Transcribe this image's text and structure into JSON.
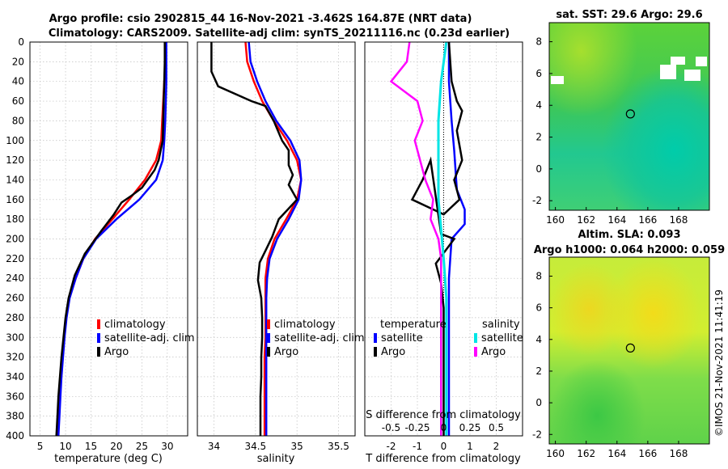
{
  "header": {
    "line1": "Argo profile: csio 2902815_44 16-Nov-2021 -3.462S 164.87E (NRT data)",
    "line2": "Climatology: CARS2009. Satellite-adj clim: synTS_20211116.nc (0.23d earlier)"
  },
  "credit": "©IMOS 21-Nov-2021 11:41:19",
  "colors": {
    "climatology": "#ff0000",
    "satellite": "#0000ff",
    "argo": "#000000",
    "sal_satellite": "#00e5e5",
    "sal_argo": "#ff00ff"
  },
  "chart_data": [
    {
      "type": "line",
      "id": "temperature",
      "xlabel": "temperature (deg C)",
      "ylabel": "",
      "xlim": [
        3,
        34
      ],
      "ylim": [
        400,
        0
      ],
      "xticks": [
        5,
        10,
        15,
        20,
        25,
        30
      ],
      "yticks": [
        0,
        20,
        40,
        60,
        80,
        100,
        120,
        140,
        160,
        180,
        200,
        220,
        240,
        260,
        280,
        300,
        320,
        340,
        360,
        380,
        400
      ],
      "legend": [
        "climatology",
        "satellite-adj. clim",
        "Argo"
      ],
      "series": [
        {
          "name": "climatology",
          "color": "red",
          "points": [
            [
              29.6,
              0
            ],
            [
              29.6,
              20
            ],
            [
              29.4,
              40
            ],
            [
              29.2,
              60
            ],
            [
              29,
              80
            ],
            [
              28.8,
              100
            ],
            [
              27.8,
              120
            ],
            [
              25.6,
              140
            ],
            [
              22.5,
              160
            ],
            [
              19.2,
              180
            ],
            [
              15.8,
              200
            ],
            [
              13.5,
              220
            ],
            [
              12,
              240
            ],
            [
              10.7,
              260
            ],
            [
              10.1,
              280
            ],
            [
              9.7,
              300
            ],
            [
              9.4,
              320
            ],
            [
              9.1,
              340
            ],
            [
              8.9,
              360
            ],
            [
              8.7,
              380
            ],
            [
              8.5,
              400
            ]
          ]
        },
        {
          "name": "satellite-adj. clim",
          "color": "blue",
          "points": [
            [
              29.8,
              0
            ],
            [
              29.8,
              20
            ],
            [
              29.8,
              40
            ],
            [
              29.7,
              60
            ],
            [
              29.6,
              80
            ],
            [
              29.4,
              100
            ],
            [
              29.1,
              120
            ],
            [
              27.8,
              140
            ],
            [
              24.5,
              160
            ],
            [
              20,
              180
            ],
            [
              16,
              200
            ],
            [
              13.5,
              220
            ],
            [
              12,
              240
            ],
            [
              10.8,
              260
            ],
            [
              10.2,
              280
            ],
            [
              9.8,
              300
            ],
            [
              9.5,
              320
            ],
            [
              9.2,
              340
            ],
            [
              9,
              360
            ],
            [
              8.8,
              380
            ],
            [
              8.6,
              400
            ]
          ]
        },
        {
          "name": "Argo",
          "color": "black",
          "points": [
            [
              29.5,
              0
            ],
            [
              29.5,
              20
            ],
            [
              29.4,
              40
            ],
            [
              29.3,
              60
            ],
            [
              29.2,
              80
            ],
            [
              29.1,
              100
            ],
            [
              28.3,
              120
            ],
            [
              27.5,
              130
            ],
            [
              25,
              148
            ],
            [
              23,
              156
            ],
            [
              21,
              163
            ],
            [
              19.5,
              175
            ],
            [
              17,
              192
            ],
            [
              13.8,
              215
            ],
            [
              11.8,
              237
            ],
            [
              10.6,
              260
            ],
            [
              10,
              280
            ],
            [
              9.6,
              300
            ],
            [
              9.2,
              320
            ],
            [
              8.9,
              340
            ],
            [
              8.6,
              360
            ],
            [
              8.4,
              380
            ],
            [
              8.2,
              400
            ]
          ]
        }
      ]
    },
    {
      "type": "line",
      "id": "salinity",
      "xlabel": "salinity",
      "ylabel": "",
      "xlim": [
        33.8,
        35.7
      ],
      "ylim": [
        400,
        0
      ],
      "xticks": [
        34,
        34.5,
        35,
        35.5
      ],
      "legend": [
        "climatology",
        "satellite-adj. clim",
        "Argo"
      ],
      "series": [
        {
          "name": "climatology",
          "color": "red",
          "points": [
            [
              34.38,
              0
            ],
            [
              34.4,
              20
            ],
            [
              34.48,
              40
            ],
            [
              34.58,
              60
            ],
            [
              34.72,
              80
            ],
            [
              34.88,
              100
            ],
            [
              35,
              120
            ],
            [
              35.05,
              140
            ],
            [
              35,
              160
            ],
            [
              34.87,
              180
            ],
            [
              34.73,
              200
            ],
            [
              34.65,
              220
            ],
            [
              34.62,
              240
            ],
            [
              34.62,
              260
            ],
            [
              34.62,
              280
            ],
            [
              34.62,
              300
            ],
            [
              34.61,
              320
            ],
            [
              34.61,
              340
            ],
            [
              34.61,
              360
            ],
            [
              34.61,
              380
            ],
            [
              34.61,
              400
            ]
          ]
        },
        {
          "name": "satellite-adj. clim",
          "color": "blue",
          "points": [
            [
              34.42,
              0
            ],
            [
              34.44,
              20
            ],
            [
              34.52,
              40
            ],
            [
              34.62,
              60
            ],
            [
              34.75,
              80
            ],
            [
              34.92,
              100
            ],
            [
              35.03,
              120
            ],
            [
              35.05,
              140
            ],
            [
              35.02,
              160
            ],
            [
              34.9,
              180
            ],
            [
              34.76,
              200
            ],
            [
              34.67,
              220
            ],
            [
              34.64,
              240
            ],
            [
              34.63,
              260
            ],
            [
              34.63,
              280
            ],
            [
              34.63,
              300
            ],
            [
              34.63,
              320
            ],
            [
              34.63,
              340
            ],
            [
              34.63,
              360
            ],
            [
              34.63,
              380
            ],
            [
              34.63,
              400
            ]
          ]
        },
        {
          "name": "Argo",
          "color": "black",
          "points": [
            [
              33.97,
              0
            ],
            [
              33.97,
              30
            ],
            [
              34.05,
              45
            ],
            [
              34.45,
              60
            ],
            [
              34.62,
              65
            ],
            [
              34.72,
              80
            ],
            [
              34.82,
              100
            ],
            [
              34.9,
              110
            ],
            [
              34.9,
              125
            ],
            [
              34.95,
              135
            ],
            [
              34.9,
              145
            ],
            [
              35,
              160
            ],
            [
              34.78,
              180
            ],
            [
              34.7,
              198
            ],
            [
              34.62,
              212
            ],
            [
              34.55,
              224
            ],
            [
              34.53,
              242
            ],
            [
              34.57,
              260
            ],
            [
              34.58,
              280
            ],
            [
              34.58,
              300
            ],
            [
              34.57,
              320
            ],
            [
              34.57,
              340
            ],
            [
              34.56,
              360
            ],
            [
              34.56,
              380
            ],
            [
              34.56,
              400
            ]
          ]
        }
      ]
    },
    {
      "type": "line",
      "id": "difference",
      "xlabel": "T difference from climatology",
      "x2label": "S difference from climatology",
      "xlim": [
        -3,
        3
      ],
      "ylim": [
        400,
        0
      ],
      "xticks": [
        -2,
        -1,
        0,
        1,
        2
      ],
      "s_ticks": [
        "-0.5",
        "-0.25",
        "0",
        "0.25",
        "0.5"
      ],
      "legend_headers": [
        "temperature",
        "salinity"
      ],
      "legend": [
        "satellite",
        "Argo",
        "satellite",
        "Argo"
      ],
      "series": [
        {
          "name": "temperature satellite",
          "color": "blue",
          "points": [
            [
              0.2,
              0
            ],
            [
              0.2,
              40
            ],
            [
              0.3,
              80
            ],
            [
              0.4,
              110
            ],
            [
              0.5,
              150
            ],
            [
              0.8,
              170
            ],
            [
              0.8,
              185
            ],
            [
              0.3,
              200
            ],
            [
              0.2,
              240
            ],
            [
              0.2,
              400
            ]
          ]
        },
        {
          "name": "temperature Argo",
          "color": "black",
          "points": [
            [
              0.2,
              0
            ],
            [
              0.3,
              40
            ],
            [
              0.5,
              60
            ],
            [
              0.7,
              70
            ],
            [
              0.5,
              90
            ],
            [
              0.7,
              120
            ],
            [
              0.4,
              140
            ],
            [
              0.6,
              160
            ],
            [
              0,
              175
            ],
            [
              -1.2,
              160
            ],
            [
              -0.8,
              140
            ],
            [
              -0.5,
              120
            ],
            [
              -0.1,
              195
            ],
            [
              0.4,
              200
            ],
            [
              -0.3,
              225
            ],
            [
              -0.1,
              245
            ],
            [
              0,
              270
            ],
            [
              0,
              400
            ]
          ]
        },
        {
          "name": "salinity satellite",
          "color": "cyan",
          "points": [
            [
              0.1,
              0
            ],
            [
              -0.1,
              40
            ],
            [
              -0.2,
              80
            ],
            [
              -0.2,
              120
            ],
            [
              -0.2,
              160
            ],
            [
              -0.1,
              190
            ],
            [
              0,
              220
            ],
            [
              0.1,
              260
            ],
            [
              0.1,
              300
            ],
            [
              0.1,
              400
            ]
          ]
        },
        {
          "name": "salinity Argo",
          "color": "magenta",
          "points": [
            [
              -1.3,
              0
            ],
            [
              -1.4,
              20
            ],
            [
              -2,
              40
            ],
            [
              -1,
              60
            ],
            [
              -0.8,
              80
            ],
            [
              -1.1,
              100
            ],
            [
              -0.9,
              120
            ],
            [
              -0.7,
              140
            ],
            [
              -0.4,
              160
            ],
            [
              -0.5,
              180
            ],
            [
              -0.2,
              200
            ],
            [
              -0.1,
              220
            ],
            [
              -0.1,
              260
            ],
            [
              -0.1,
              300
            ],
            [
              -0.1,
              340
            ],
            [
              -0.1,
              400
            ]
          ]
        }
      ]
    },
    {
      "type": "heatmap",
      "id": "sst_map",
      "title": "sat. SST: 29.6 Argo: 29.6",
      "xlim": [
        159.6,
        170
      ],
      "ylim": [
        -2.6,
        9.2
      ],
      "xticks": [
        160,
        162,
        164,
        166,
        168
      ],
      "yticks": [
        -2,
        0,
        2,
        4,
        6,
        8
      ],
      "marker": [
        164.87,
        3.46
      ]
    },
    {
      "type": "heatmap",
      "id": "sla_map",
      "title": "Altim. SLA: 0.093",
      "subtitle": "Argo h1000: 0.064 h2000: 0.059",
      "xlim": [
        159.6,
        170
      ],
      "ylim": [
        -2.6,
        9.2
      ],
      "xticks": [
        160,
        162,
        164,
        166,
        168
      ],
      "yticks": [
        -2,
        0,
        2,
        4,
        6,
        8
      ],
      "marker": [
        164.87,
        3.46
      ]
    }
  ]
}
